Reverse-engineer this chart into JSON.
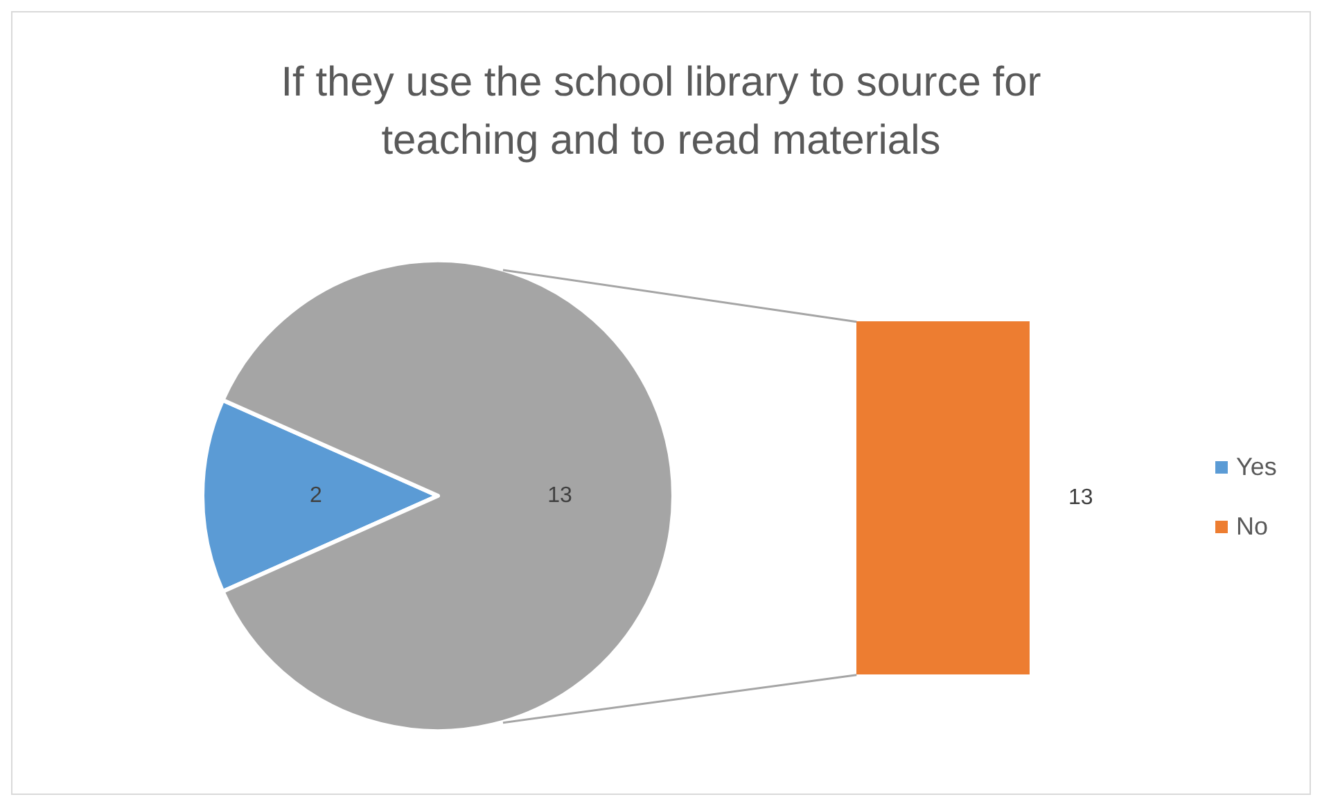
{
  "chart_data": [
    {
      "type": "pie",
      "title": "If they use the school library to source for teaching and to read materials",
      "categories": [
        "Yes",
        null
      ],
      "values": [
        2,
        13
      ],
      "colors": [
        "#5b9bd5",
        "#a5a5a5"
      ],
      "data_labels": true,
      "legend": "right"
    },
    {
      "type": "other",
      "series": [
        {
          "name": "No",
          "color": "#ed7d31",
          "values": [
            13
          ]
        }
      ],
      "data_labels": true,
      "legend": "right"
    }
  ]
}
